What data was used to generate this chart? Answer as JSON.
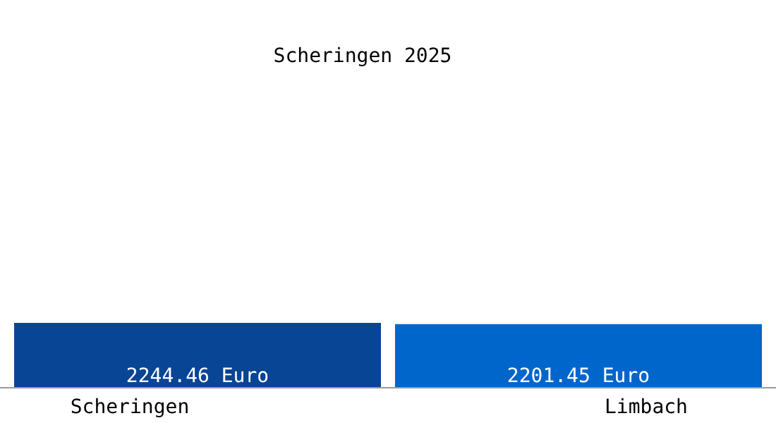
{
  "chart_data": {
    "type": "bar",
    "title": "Scheringen 2025",
    "categories": [
      "Scheringen",
      "Limbach"
    ],
    "values": [
      2244.46,
      2201.45
    ],
    "colors": [
      "#084594",
      "#0066cc"
    ],
    "value_labels": [
      "2244.46 Euro",
      "2201.45 Euro"
    ],
    "tick_labels": "x"
  }
}
